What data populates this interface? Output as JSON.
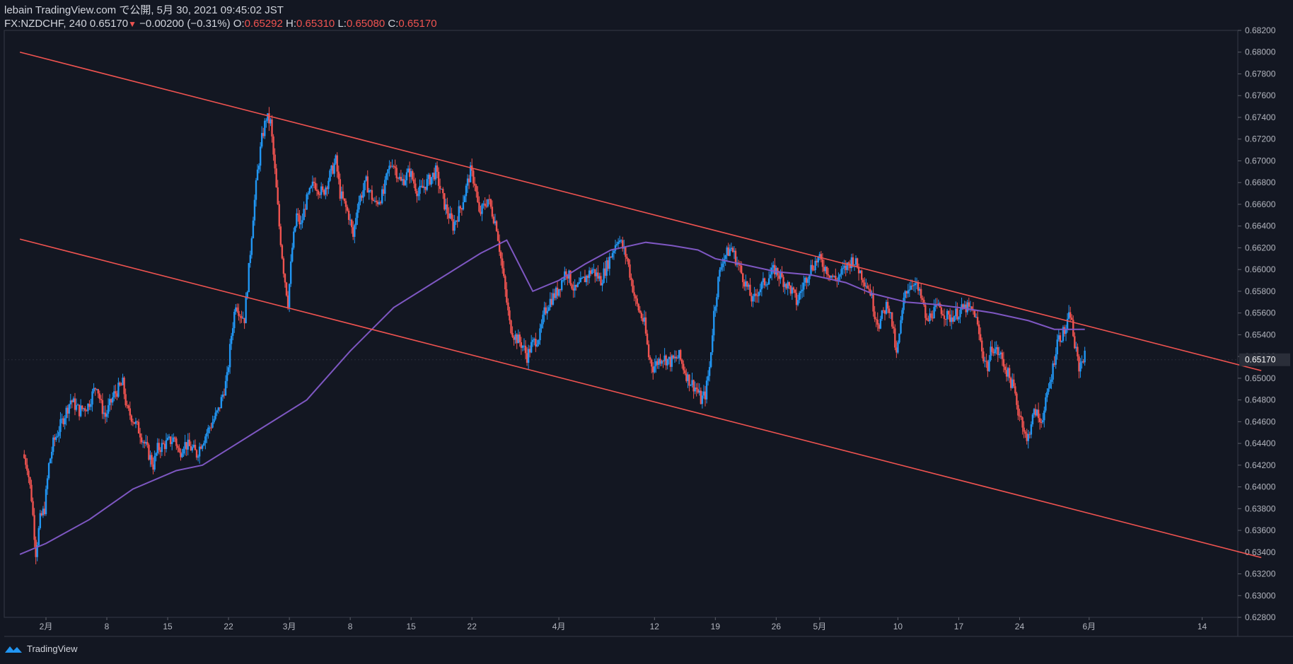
{
  "header": {
    "published": "lebain TradingView.com で公開, 5月 30, 2021 09:45:02 JST",
    "symbol": "FX:NZDCHF, 240",
    "last": "0.65170",
    "change": "−0.00200 (−0.31%)",
    "open_label": "O:",
    "open": "0.65292",
    "high_label": "H:",
    "high": "0.65310",
    "low_label": "L:",
    "low": "0.65080",
    "close_label": "C:",
    "close": "0.65170"
  },
  "footer": {
    "brand": "TradingView"
  },
  "colors": {
    "background": "#131722",
    "up": "#2196f3",
    "down": "#ef5350",
    "trendline": "#ef5350",
    "ma": "#7e57c2",
    "price_label_bg": "#2a2e39"
  },
  "chart_data": {
    "type": "candlestick",
    "interval": "240",
    "ylim": [
      0.628,
      0.682
    ],
    "y_ticks": [
      "0.68200",
      "0.68000",
      "0.67800",
      "0.67600",
      "0.67400",
      "0.67200",
      "0.67000",
      "0.66800",
      "0.66600",
      "0.66400",
      "0.66200",
      "0.66000",
      "0.65800",
      "0.65600",
      "0.65400",
      "0.65200",
      "0.65000",
      "0.64800",
      "0.64600",
      "0.64400",
      "0.64200",
      "0.64000",
      "0.63800",
      "0.63600",
      "0.63400",
      "0.63200",
      "0.63000",
      "0.62800"
    ],
    "x_ticks": [
      {
        "label": "2月",
        "day": 0
      },
      {
        "label": "8",
        "day": 7
      },
      {
        "label": "15",
        "day": 14
      },
      {
        "label": "22",
        "day": 21
      },
      {
        "label": "3月",
        "day": 28
      },
      {
        "label": "8",
        "day": 35
      },
      {
        "label": "15",
        "day": 42
      },
      {
        "label": "22",
        "day": 49
      },
      {
        "label": "4月",
        "day": 59
      },
      {
        "label": "12",
        "day": 70
      },
      {
        "label": "19",
        "day": 77
      },
      {
        "label": "26",
        "day": 84
      },
      {
        "label": "5月",
        "day": 89
      },
      {
        "label": "10",
        "day": 98
      },
      {
        "label": "17",
        "day": 105
      },
      {
        "label": "24",
        "day": 112
      },
      {
        "label": "6月",
        "day": 120
      },
      {
        "label": "14",
        "day": 133
      }
    ],
    "current_price": "0.65170",
    "close_path": [
      [
        -2.5,
        0.643
      ],
      [
        -2,
        0.642
      ],
      [
        -1.5,
        0.639
      ],
      [
        -1,
        0.634
      ],
      [
        -0.5,
        0.637
      ],
      [
        0,
        0.638
      ],
      [
        0.5,
        0.642
      ],
      [
        1,
        0.644
      ],
      [
        2,
        0.646
      ],
      [
        3,
        0.648
      ],
      [
        4,
        0.647
      ],
      [
        5,
        0.6475
      ],
      [
        6,
        0.6495
      ],
      [
        6.5,
        0.6475
      ],
      [
        7,
        0.6465
      ],
      [
        8,
        0.6485
      ],
      [
        9,
        0.6495
      ],
      [
        9.5,
        0.647
      ],
      [
        10,
        0.6465
      ],
      [
        11,
        0.645
      ],
      [
        12,
        0.643
      ],
      [
        12.5,
        0.642
      ],
      [
        13,
        0.6435
      ],
      [
        14,
        0.644
      ],
      [
        15,
        0.6445
      ],
      [
        15.5,
        0.643
      ],
      [
        16,
        0.644
      ],
      [
        17,
        0.6435
      ],
      [
        17.5,
        0.643
      ],
      [
        18,
        0.644
      ],
      [
        19,
        0.6455
      ],
      [
        20,
        0.647
      ],
      [
        21,
        0.65
      ],
      [
        21.5,
        0.654
      ],
      [
        22,
        0.657
      ],
      [
        22.5,
        0.656
      ],
      [
        23,
        0.6555
      ],
      [
        23.5,
        0.66
      ],
      [
        24,
        0.665
      ],
      [
        24.5,
        0.669
      ],
      [
        25,
        0.672
      ],
      [
        25.5,
        0.674
      ],
      [
        26,
        0.6735
      ],
      [
        26.5,
        0.669
      ],
      [
        27,
        0.664
      ],
      [
        27.5,
        0.66
      ],
      [
        28,
        0.657
      ],
      [
        28.5,
        0.662
      ],
      [
        29,
        0.665
      ],
      [
        29.5,
        0.664
      ],
      [
        30,
        0.666
      ],
      [
        31,
        0.668
      ],
      [
        32,
        0.667
      ],
      [
        33,
        0.669
      ],
      [
        33.5,
        0.67
      ],
      [
        34,
        0.667
      ],
      [
        35,
        0.665
      ],
      [
        35.5,
        0.663
      ],
      [
        36,
        0.666
      ],
      [
        37,
        0.668
      ],
      [
        38,
        0.666
      ],
      [
        39,
        0.667
      ],
      [
        39.5,
        0.669
      ],
      [
        40,
        0.67
      ],
      [
        41,
        0.668
      ],
      [
        42,
        0.669
      ],
      [
        43,
        0.667
      ],
      [
        44,
        0.668
      ],
      [
        45,
        0.669
      ],
      [
        46,
        0.666
      ],
      [
        47,
        0.664
      ],
      [
        48,
        0.666
      ],
      [
        49,
        0.669
      ],
      [
        49.5,
        0.668
      ],
      [
        50,
        0.665
      ],
      [
        51,
        0.6665
      ],
      [
        52,
        0.664
      ],
      [
        52.5,
        0.661
      ],
      [
        53,
        0.658
      ],
      [
        53.5,
        0.655
      ],
      [
        54,
        0.654
      ],
      [
        55,
        0.653
      ],
      [
        55.5,
        0.652
      ],
      [
        56,
        0.653
      ],
      [
        57,
        0.654
      ],
      [
        57.5,
        0.656
      ],
      [
        58,
        0.657
      ],
      [
        59,
        0.658
      ],
      [
        60,
        0.66
      ],
      [
        61,
        0.658
      ],
      [
        62,
        0.659
      ],
      [
        63,
        0.66
      ],
      [
        64,
        0.659
      ],
      [
        65,
        0.661
      ],
      [
        66,
        0.663
      ],
      [
        66.5,
        0.662
      ],
      [
        67,
        0.661
      ],
      [
        67.5,
        0.659
      ],
      [
        68,
        0.657
      ],
      [
        69,
        0.655
      ],
      [
        69.5,
        0.652
      ],
      [
        70,
        0.651
      ],
      [
        71,
        0.652
      ],
      [
        72,
        0.6515
      ],
      [
        73,
        0.652
      ],
      [
        74,
        0.65
      ],
      [
        75,
        0.649
      ],
      [
        75.5,
        0.648
      ],
      [
        76,
        0.6485
      ],
      [
        76.5,
        0.651
      ],
      [
        77,
        0.656
      ],
      [
        77.5,
        0.659
      ],
      [
        78,
        0.661
      ],
      [
        79,
        0.662
      ],
      [
        80,
        0.66
      ],
      [
        81,
        0.658
      ],
      [
        81.5,
        0.657
      ],
      [
        82,
        0.658
      ],
      [
        83,
        0.659
      ],
      [
        84,
        0.66
      ],
      [
        85,
        0.659
      ],
      [
        86,
        0.658
      ],
      [
        86.5,
        0.657
      ],
      [
        87,
        0.658
      ],
      [
        88,
        0.66
      ],
      [
        89,
        0.661
      ],
      [
        90,
        0.66
      ],
      [
        91,
        0.659
      ],
      [
        92,
        0.66
      ],
      [
        93,
        0.661
      ],
      [
        94,
        0.6595
      ],
      [
        95,
        0.658
      ],
      [
        95.5,
        0.656
      ],
      [
        96,
        0.655
      ],
      [
        96.5,
        0.656
      ],
      [
        97,
        0.657
      ],
      [
        97.5,
        0.655
      ],
      [
        98,
        0.652
      ],
      [
        98.5,
        0.655
      ],
      [
        99,
        0.658
      ],
      [
        100,
        0.659
      ],
      [
        101,
        0.657
      ],
      [
        101.5,
        0.655
      ],
      [
        102,
        0.656
      ],
      [
        103,
        0.6565
      ],
      [
        104,
        0.6555
      ],
      [
        105,
        0.656
      ],
      [
        106,
        0.6565
      ],
      [
        107,
        0.656
      ],
      [
        107.5,
        0.654
      ],
      [
        108,
        0.652
      ],
      [
        108.5,
        0.651
      ],
      [
        109,
        0.653
      ],
      [
        110,
        0.652
      ],
      [
        110.5,
        0.651
      ],
      [
        111,
        0.65
      ],
      [
        111.5,
        0.649
      ],
      [
        112,
        0.647
      ],
      [
        112.5,
        0.646
      ],
      [
        113,
        0.644
      ],
      [
        113.5,
        0.646
      ],
      [
        114,
        0.647
      ],
      [
        114.5,
        0.646
      ],
      [
        115,
        0.647
      ],
      [
        115.5,
        0.649
      ],
      [
        116,
        0.651
      ],
      [
        116.5,
        0.6535
      ],
      [
        117,
        0.654
      ],
      [
        117.5,
        0.6545
      ],
      [
        118,
        0.656
      ],
      [
        118.5,
        0.653
      ],
      [
        119,
        0.651
      ],
      [
        119.5,
        0.652
      ]
    ],
    "trendlines": [
      {
        "from": [
          -3,
          0.68
        ],
        "to": [
          139.8,
          0.6507
        ]
      },
      {
        "from": [
          -3,
          0.6628
        ],
        "to": [
          139.8,
          0.6335
        ]
      }
    ],
    "ma_path": [
      [
        -3,
        0.6338
      ],
      [
        0,
        0.6348
      ],
      [
        5,
        0.637
      ],
      [
        10,
        0.6398
      ],
      [
        15,
        0.6415
      ],
      [
        18,
        0.642
      ],
      [
        21,
        0.6435
      ],
      [
        25,
        0.6455
      ],
      [
        30,
        0.648
      ],
      [
        35,
        0.6525
      ],
      [
        40,
        0.6565
      ],
      [
        45,
        0.659
      ],
      [
        50,
        0.6615
      ],
      [
        53,
        0.6627
      ],
      [
        56,
        0.658
      ],
      [
        59,
        0.659
      ],
      [
        62,
        0.6605
      ],
      [
        65,
        0.6618
      ],
      [
        69,
        0.6625
      ],
      [
        72,
        0.6622
      ],
      [
        75,
        0.6618
      ],
      [
        77,
        0.661
      ],
      [
        80,
        0.6605
      ],
      [
        84,
        0.6598
      ],
      [
        88,
        0.6595
      ],
      [
        92,
        0.6588
      ],
      [
        95,
        0.6578
      ],
      [
        99,
        0.657
      ],
      [
        102,
        0.6568
      ],
      [
        105,
        0.6565
      ],
      [
        109,
        0.656
      ],
      [
        113,
        0.6553
      ],
      [
        116,
        0.6545
      ],
      [
        119.5,
        0.6545
      ]
    ]
  }
}
